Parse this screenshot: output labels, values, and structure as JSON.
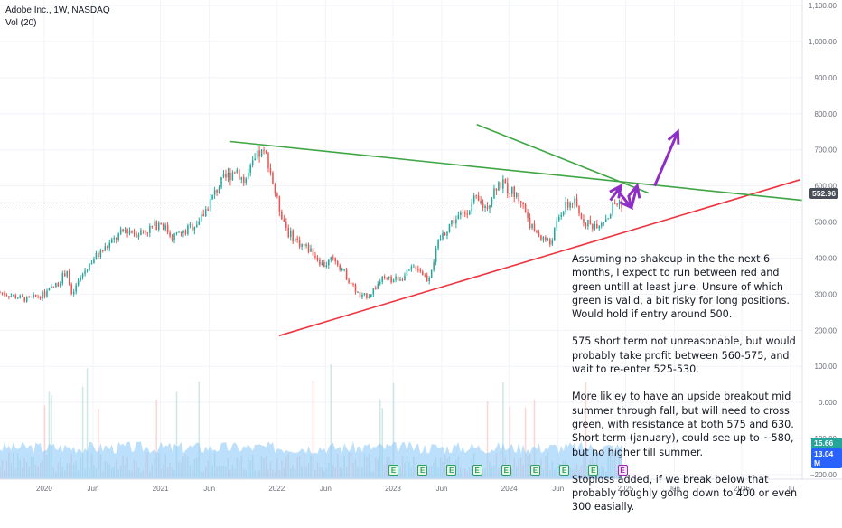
{
  "header": {
    "symbol_line": "Adobe Inc., 1W, NASDAQ",
    "indicator_line": "Vol (20)"
  },
  "price_badges": {
    "last_price": "552.96",
    "vol_a": "15.66 M",
    "vol_b": "13.04 M"
  },
  "colors": {
    "up": "#26a69a",
    "down": "#ef5350",
    "volume": "#90caf9",
    "support": "#f0333f",
    "resistance": "#3fa644",
    "arrow": "#8e2ec4"
  },
  "chart_data": {
    "type": "candlestick",
    "title": "Adobe Inc., 1W, NASDAQ",
    "x_tick_labels": [
      "2020",
      "Jun",
      "2021",
      "Jun",
      "2022",
      "Jun",
      "2023",
      "Jun",
      "2024",
      "Jun",
      "2025",
      "Jun",
      "2026",
      "Ju"
    ],
    "y_tick_labels": [
      "1,100.00",
      "1,000.00",
      "900.00",
      "800.00",
      "700.00",
      "600.00",
      "500.00",
      "400.00",
      "300.00",
      "200.00",
      "100.00",
      "0.000",
      "−100.00",
      "−200.00"
    ],
    "y_tick_values": [
      1100,
      1000,
      900,
      800,
      700,
      600,
      500,
      400,
      300,
      200,
      100,
      0,
      -100,
      -200
    ],
    "ylim": [
      -220,
      1115
    ],
    "xlim": [
      2019.62,
      2026.52
    ],
    "price_path": [
      [
        2019.62,
        305
      ],
      [
        2019.85,
        285
      ],
      [
        2020.0,
        300
      ],
      [
        2020.12,
        330
      ],
      [
        2020.2,
        370
      ],
      [
        2020.23,
        290
      ],
      [
        2020.3,
        340
      ],
      [
        2020.4,
        390
      ],
      [
        2020.5,
        420
      ],
      [
        2020.6,
        450
      ],
      [
        2020.7,
        480
      ],
      [
        2020.8,
        470
      ],
      [
        2020.9,
        480
      ],
      [
        2021.0,
        500
      ],
      [
        2021.1,
        460
      ],
      [
        2021.2,
        470
      ],
      [
        2021.35,
        510
      ],
      [
        2021.5,
        600
      ],
      [
        2021.65,
        650
      ],
      [
        2021.72,
        610
      ],
      [
        2021.85,
        690
      ],
      [
        2021.92,
        680
      ],
      [
        2022.0,
        560
      ],
      [
        2022.1,
        470
      ],
      [
        2022.2,
        440
      ],
      [
        2022.3,
        420
      ],
      [
        2022.4,
        380
      ],
      [
        2022.5,
        400
      ],
      [
        2022.6,
        350
      ],
      [
        2022.72,
        290
      ],
      [
        2022.8,
        300
      ],
      [
        2022.9,
        340
      ],
      [
        2023.0,
        340
      ],
      [
        2023.1,
        350
      ],
      [
        2023.2,
        380
      ],
      [
        2023.3,
        340
      ],
      [
        2023.4,
        450
      ],
      [
        2023.5,
        500
      ],
      [
        2023.6,
        520
      ],
      [
        2023.7,
        560
      ],
      [
        2023.8,
        540
      ],
      [
        2023.9,
        610
      ],
      [
        2024.0,
        590
      ],
      [
        2024.1,
        560
      ],
      [
        2024.2,
        480
      ],
      [
        2024.35,
        440
      ],
      [
        2024.45,
        530
      ],
      [
        2024.55,
        560
      ],
      [
        2024.6,
        520
      ],
      [
        2024.7,
        490
      ],
      [
        2024.78,
        500
      ],
      [
        2024.86,
        520
      ],
      [
        2024.9,
        550
      ],
      [
        2024.97,
        553
      ]
    ],
    "volume_y_ticks": [
      -200
    ],
    "annotations": {
      "support_line": [
        [
          2022.02,
          185
        ],
        [
          2026.5,
          617
        ]
      ],
      "resistance_line": [
        [
          2021.6,
          723
        ],
        [
          2026.52,
          560
        ]
      ],
      "short_resistance": [
        [
          2023.72,
          770
        ],
        [
          2025.2,
          580
        ]
      ],
      "arrow_down": [
        [
          2024.92,
          592
        ],
        [
          2025.05,
          540
        ]
      ],
      "arrow_up": [
        [
          2025.25,
          600
        ],
        [
          2025.45,
          750
        ]
      ],
      "arrow_head_box": [
        [
          2024.87,
          530
        ],
        [
          2025.25,
          590
        ]
      ]
    },
    "last_price": 552.96
  },
  "note": {
    "paragraphs": [
      "Assuming no shakeup in the the next 6 months, I expect to run between red and green untill at least june.   Unsure of which green is valid, a bit risky for long positions. Would hold if entry around 500.",
      " 575 short term not unreasonable, but would probably take profit between 560-575, and wait to re-enter 525-530.",
      "More likley to have an upside breakout mid summer through fall, but will need to cross green, with resistance at both 575 and 630. Short term (january), could see up to ~580, but no higher till summer.",
      "Stoploss added, if we break below that probably roughly going down to 400 or even 300 easially."
    ]
  },
  "earnings_markers": [
    "E",
    "E",
    "E",
    "E",
    "E",
    "E",
    "E",
    "E",
    "E"
  ]
}
